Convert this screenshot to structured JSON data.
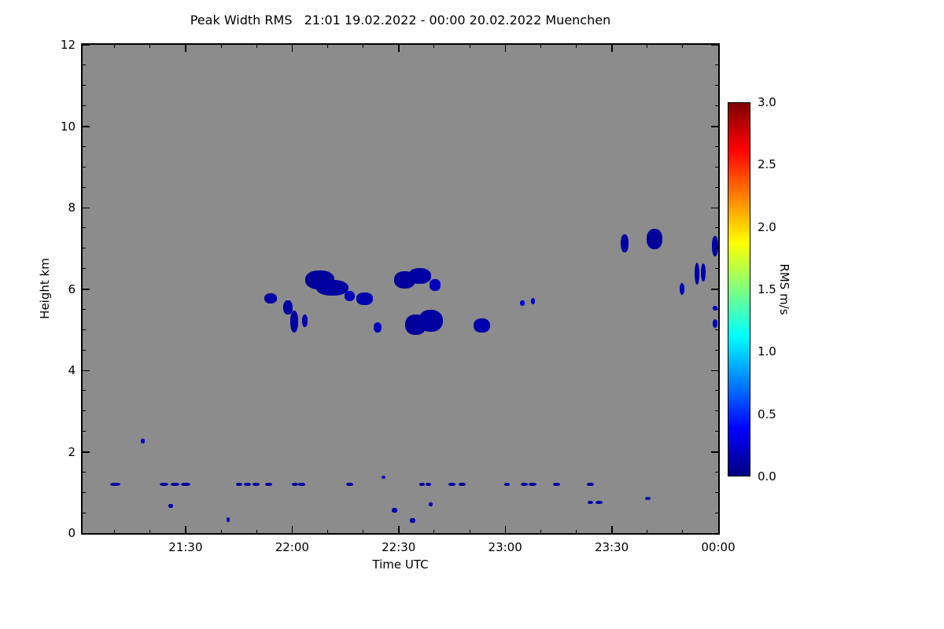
{
  "chart_data": {
    "type": "heatmap",
    "title": "Peak Width RMS   21:01 19.02.2022 - 00:00 20.02.2022 Muenchen",
    "site": "Muenchen",
    "time_start": "21:01 19.02.2022",
    "time_end": "00:00 20.02.2022",
    "xlabel": "Time UTC",
    "ylabel": "Height km",
    "x_hours_range": [
      21.0167,
      24.0
    ],
    "xticks": [
      {
        "hours": 21.5,
        "label": "21:30"
      },
      {
        "hours": 22.0,
        "label": "22:00"
      },
      {
        "hours": 22.5,
        "label": "22:30"
      },
      {
        "hours": 23.0,
        "label": "23:00"
      },
      {
        "hours": 23.5,
        "label": "23:30"
      },
      {
        "hours": 24.0,
        "label": "00:00"
      }
    ],
    "ylim": [
      0,
      12
    ],
    "yticks": [
      0,
      2,
      4,
      6,
      8,
      10,
      12
    ],
    "background_color": "#8C8C8C",
    "no_data_color": "#8C8C8C",
    "colorbar": {
      "label": "RMS m/s",
      "min": 0.0,
      "max": 3.0,
      "colormap": "jet",
      "ticks": [
        "3.0",
        "2.5",
        "2.0",
        "1.5",
        "1.0",
        "0.5",
        "0.0"
      ]
    },
    "patch_format": [
      "time_hours_utc",
      "height_km",
      "width_minutes",
      "height_extent_km",
      "rms_m_s"
    ],
    "patches": [
      [
        21.9,
        5.77,
        3.5,
        0.25,
        0.12
      ],
      [
        21.98,
        5.55,
        2.5,
        0.35,
        0.1
      ],
      [
        22.01,
        5.2,
        2.3,
        0.55,
        0.1
      ],
      [
        22.06,
        5.22,
        1.6,
        0.3,
        0.15
      ],
      [
        22.13,
        6.22,
        8.0,
        0.45,
        0.08
      ],
      [
        22.19,
        6.03,
        9.0,
        0.4,
        0.1
      ],
      [
        22.27,
        5.83,
        3.0,
        0.25,
        0.18
      ],
      [
        22.34,
        5.76,
        4.5,
        0.3,
        0.14
      ],
      [
        22.4,
        5.05,
        2.2,
        0.25,
        0.18
      ],
      [
        22.53,
        6.22,
        6.0,
        0.42,
        0.08
      ],
      [
        22.6,
        6.32,
        6.5,
        0.38,
        0.1
      ],
      [
        22.67,
        6.1,
        3.0,
        0.28,
        0.18
      ],
      [
        22.58,
        5.12,
        6.0,
        0.5,
        0.08
      ],
      [
        22.65,
        5.22,
        7.0,
        0.55,
        0.1
      ],
      [
        22.89,
        5.1,
        4.5,
        0.35,
        0.14
      ],
      [
        23.08,
        5.65,
        1.2,
        0.15,
        0.25
      ],
      [
        23.13,
        5.7,
        1.2,
        0.15,
        0.25
      ],
      [
        23.56,
        7.12,
        2.2,
        0.45,
        0.1
      ],
      [
        23.7,
        7.22,
        4.5,
        0.5,
        0.08
      ],
      [
        23.83,
        6.0,
        1.5,
        0.3,
        0.18
      ],
      [
        23.9,
        6.38,
        1.5,
        0.55,
        0.12
      ],
      [
        23.93,
        6.4,
        1.4,
        0.45,
        0.14
      ],
      [
        23.985,
        7.05,
        1.8,
        0.5,
        0.12
      ],
      [
        23.985,
        5.52,
        1.2,
        0.12,
        0.25
      ],
      [
        23.985,
        5.15,
        1.5,
        0.2,
        0.18
      ],
      [
        21.17,
        1.2,
        3.0,
        0.08,
        0.1
      ],
      [
        21.4,
        1.2,
        2.5,
        0.08,
        0.1
      ],
      [
        21.45,
        1.2,
        2.5,
        0.08,
        0.1
      ],
      [
        21.5,
        1.2,
        2.5,
        0.08,
        0.1
      ],
      [
        21.75,
        1.2,
        1.8,
        0.08,
        0.1
      ],
      [
        21.79,
        1.2,
        2.0,
        0.08,
        0.1
      ],
      [
        21.83,
        1.2,
        2.0,
        0.08,
        0.1
      ],
      [
        21.89,
        1.2,
        2.0,
        0.08,
        0.1
      ],
      [
        22.015,
        1.2,
        1.8,
        0.08,
        0.1
      ],
      [
        22.045,
        1.2,
        1.8,
        0.08,
        0.1
      ],
      [
        22.27,
        1.2,
        2.0,
        0.08,
        0.1
      ],
      [
        22.43,
        1.37,
        1.2,
        0.08,
        0.15
      ],
      [
        22.61,
        1.2,
        1.5,
        0.08,
        0.1
      ],
      [
        22.64,
        1.2,
        1.5,
        0.08,
        0.1
      ],
      [
        22.75,
        1.2,
        1.8,
        0.08,
        0.1
      ],
      [
        22.8,
        1.2,
        2.0,
        0.08,
        0.1
      ],
      [
        23.01,
        1.2,
        1.5,
        0.08,
        0.1
      ],
      [
        23.09,
        1.2,
        2.0,
        0.08,
        0.1
      ],
      [
        23.13,
        1.2,
        2.2,
        0.08,
        0.1
      ],
      [
        23.24,
        1.2,
        2.0,
        0.08,
        0.1
      ],
      [
        23.4,
        1.2,
        1.8,
        0.08,
        0.1
      ],
      [
        23.4,
        0.75,
        1.5,
        0.08,
        0.12
      ],
      [
        23.44,
        0.75,
        2.0,
        0.08,
        0.12
      ],
      [
        23.67,
        0.85,
        1.5,
        0.08,
        0.12
      ],
      [
        21.3,
        2.26,
        1.0,
        0.1,
        0.2
      ],
      [
        21.43,
        0.66,
        1.2,
        0.1,
        0.15
      ],
      [
        21.7,
        0.33,
        1.0,
        0.1,
        0.15
      ],
      [
        22.48,
        0.56,
        1.5,
        0.1,
        0.12
      ],
      [
        22.565,
        0.31,
        1.5,
        0.1,
        0.12
      ],
      [
        22.65,
        0.7,
        1.0,
        0.1,
        0.15
      ]
    ]
  }
}
